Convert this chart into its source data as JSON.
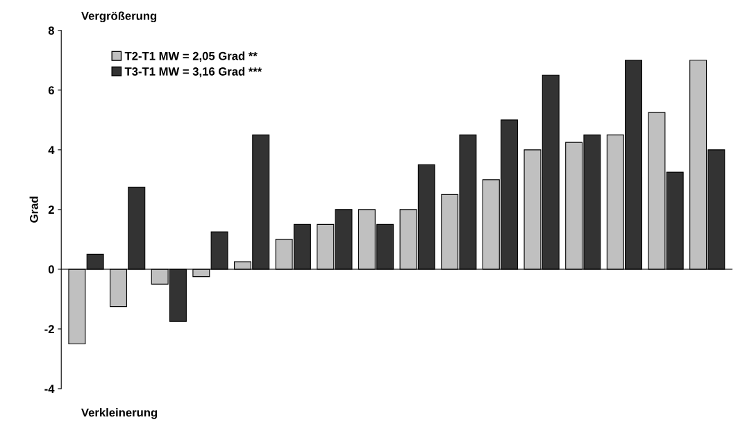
{
  "chart_data": {
    "type": "bar",
    "ylabel": "Grad",
    "categories": [
      null,
      null,
      null,
      null,
      null,
      null,
      null,
      null,
      null,
      null,
      null,
      null,
      null,
      null,
      null,
      null
    ],
    "series": [
      {
        "name": "T2-T1 MW = 2,05 Grad **",
        "color": "#c0c0c0",
        "values": [
          -2.5,
          -1.25,
          -0.5,
          -0.25,
          0.25,
          1.0,
          1.5,
          2.0,
          2.0,
          2.5,
          3.0,
          4.0,
          4.25,
          4.5,
          5.25,
          7.0
        ]
      },
      {
        "name": "T3-T1 MW = 3,16 Grad ***",
        "color": "#333333",
        "values": [
          0.5,
          2.75,
          -1.75,
          1.25,
          4.5,
          1.5,
          2.0,
          1.5,
          3.5,
          4.5,
          5.0,
          6.5,
          4.5,
          7.0,
          3.25,
          4.0
        ]
      }
    ],
    "ylim": [
      -4,
      8
    ],
    "yticks": [
      -4,
      -2,
      0,
      2,
      4,
      6,
      8
    ],
    "annotations": [
      "Vergrößerung",
      "Verkleinerung"
    ],
    "legend": "top left"
  }
}
